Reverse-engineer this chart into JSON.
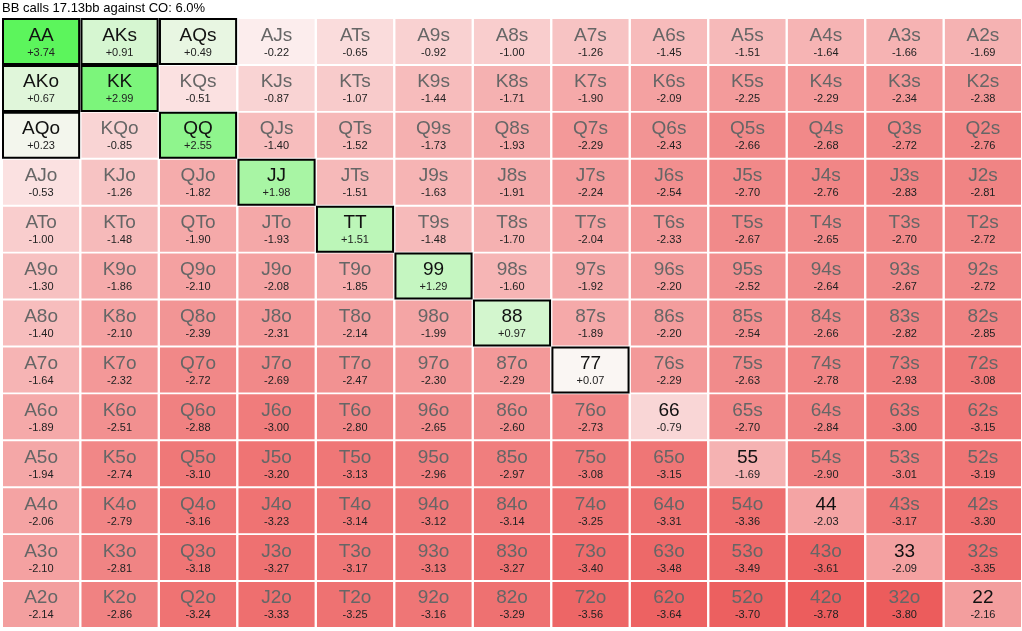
{
  "chart_data": {
    "type": "heatmap",
    "title": "BB calls 17.13bb against CO: 6.0%",
    "categories": [
      null,
      null,
      null,
      null,
      null,
      null,
      null,
      null,
      null,
      null,
      null,
      null,
      null
    ],
    "y_categories": [
      null,
      null,
      null,
      null,
      null,
      null,
      null,
      null,
      null,
      null,
      null,
      null,
      null
    ],
    "cells": [
      [
        3.74,
        0.91,
        0.49,
        -0.22,
        -0.65,
        -0.92,
        -1.0,
        -1.26,
        -1.45,
        -1.51,
        -1.64,
        -1.66,
        -1.69
      ],
      [
        0.67,
        2.99,
        -0.51,
        -0.87,
        -1.07,
        -1.44,
        -1.71,
        -1.9,
        -2.09,
        -2.25,
        -2.29,
        -2.34,
        -2.38
      ],
      [
        0.23,
        -0.85,
        2.55,
        -1.4,
        -1.52,
        -1.73,
        -1.93,
        -2.29,
        -2.43,
        -2.66,
        -2.68,
        -2.72,
        -2.76
      ],
      [
        -0.53,
        -1.26,
        -1.82,
        1.98,
        -1.51,
        -1.63,
        -1.91,
        -2.24,
        -2.54,
        -2.7,
        -2.76,
        -2.83,
        -2.81
      ],
      [
        -1.0,
        -1.48,
        -1.9,
        -1.93,
        1.51,
        -1.48,
        -1.7,
        -2.04,
        -2.33,
        -2.67,
        -2.65,
        -2.7,
        -2.72
      ],
      [
        -1.3,
        -1.86,
        -2.1,
        -2.08,
        -1.85,
        1.29,
        -1.6,
        -1.92,
        -2.2,
        -2.52,
        -2.64,
        -2.67,
        -2.72
      ],
      [
        -1.4,
        -2.1,
        -2.39,
        -2.31,
        -2.14,
        -1.99,
        0.97,
        -1.89,
        -2.2,
        -2.54,
        -2.66,
        -2.82,
        -2.85
      ],
      [
        -1.64,
        -2.32,
        -2.72,
        -2.69,
        -2.47,
        -2.3,
        -2.29,
        0.07,
        -2.29,
        -2.63,
        -2.78,
        -2.93,
        -3.08
      ],
      [
        -1.89,
        -2.51,
        -2.88,
        -3.0,
        -2.8,
        -2.65,
        -2.6,
        -2.73,
        -0.79,
        -2.7,
        -2.84,
        -3.0,
        -3.15
      ],
      [
        -1.94,
        -2.74,
        -3.1,
        -3.2,
        -3.13,
        -2.96,
        -2.97,
        -3.08,
        -3.15,
        -1.69,
        -2.9,
        -3.01,
        -3.19
      ],
      [
        -2.06,
        -2.79,
        -3.16,
        -3.23,
        -3.14,
        -3.12,
        -3.14,
        -3.25,
        -3.31,
        -3.36,
        -2.03,
        -3.17,
        -3.3
      ],
      [
        -2.1,
        -2.81,
        -3.18,
        -3.27,
        -3.17,
        -3.13,
        -3.27,
        -3.4,
        -3.48,
        -3.49,
        -3.61,
        -2.09,
        -3.35
      ],
      [
        -2.14,
        -2.86,
        -3.24,
        -3.33,
        -3.25,
        -3.16,
        -3.29,
        -3.56,
        -3.64,
        -3.7,
        -3.78,
        -3.8,
        -2.16
      ]
    ],
    "cell_labels": [
      [
        "+3.74",
        "+0.91",
        "+0.49",
        "-0.22",
        "-0.65",
        "-0.92",
        "-1.00",
        "-1.26",
        "-1.45",
        "-1.51",
        "-1.64",
        "-1.66",
        "-1.69"
      ],
      [
        "+0.67",
        "+2.99",
        "-0.51",
        "-0.87",
        "-1.07",
        "-1.44",
        "-1.71",
        "-1.90",
        "-2.09",
        "-2.25",
        "-2.29",
        "-2.34",
        "-2.38"
      ],
      [
        "+0.23",
        "-0.85",
        "+2.55",
        "-1.40",
        "-1.52",
        "-1.73",
        "-1.93",
        "-2.29",
        "-2.43",
        "-2.66",
        "-2.68",
        "-2.72",
        "-2.76"
      ],
      [
        "-0.53",
        "-1.26",
        "-1.82",
        "+1.98",
        "-1.51",
        "-1.63",
        "-1.91",
        "-2.24",
        "-2.54",
        "-2.70",
        "-2.76",
        "-2.83",
        "-2.81"
      ],
      [
        "-1.00",
        "-1.48",
        "-1.90",
        "-1.93",
        "+1.51",
        "-1.48",
        "-1.70",
        "-2.04",
        "-2.33",
        "-2.67",
        "-2.65",
        "-2.70",
        "-2.72"
      ],
      [
        "-1.30",
        "-1.86",
        "-2.10",
        "-2.08",
        "-1.85",
        "+1.29",
        "-1.60",
        "-1.92",
        "-2.20",
        "-2.52",
        "-2.64",
        "-2.67",
        "-2.72"
      ],
      [
        "-1.40",
        "-2.10",
        "-2.39",
        "-2.31",
        "-2.14",
        "-1.99",
        "+0.97",
        "-1.89",
        "-2.20",
        "-2.54",
        "-2.66",
        "-2.82",
        "-2.85"
      ],
      [
        "-1.64",
        "-2.32",
        "-2.72",
        "-2.69",
        "-2.47",
        "-2.30",
        "-2.29",
        "+0.07",
        "-2.29",
        "-2.63",
        "-2.78",
        "-2.93",
        "-3.08"
      ],
      [
        "-1.89",
        "-2.51",
        "-2.88",
        "-3.00",
        "-2.80",
        "-2.65",
        "-2.60",
        "-2.73",
        "-0.79",
        "-2.70",
        "-2.84",
        "-3.00",
        "-3.15"
      ],
      [
        "-1.94",
        "-2.74",
        "-3.10",
        "-3.20",
        "-3.13",
        "-2.96",
        "-2.97",
        "-3.08",
        "-3.15",
        "-1.69",
        "-2.90",
        "-3.01",
        "-3.19"
      ],
      [
        "-2.06",
        "-2.79",
        "-3.16",
        "-3.23",
        "-3.14",
        "-3.12",
        "-3.14",
        "-3.25",
        "-3.31",
        "-3.36",
        "-2.03",
        "-3.17",
        "-3.30"
      ],
      [
        "-2.10",
        "-2.81",
        "-3.18",
        "-3.27",
        "-3.17",
        "-3.13",
        "-3.27",
        "-3.40",
        "-3.48",
        "-3.49",
        "-3.61",
        "-2.09",
        "-3.35"
      ],
      [
        "-2.14",
        "-2.86",
        "-3.24",
        "-3.33",
        "-3.25",
        "-3.16",
        "-3.29",
        "-3.56",
        "-3.64",
        "-3.70",
        "-3.78",
        "-3.80",
        "-2.16"
      ]
    ],
    "annotations": [
      "AA",
      "AKs",
      "AQs",
      "AJs",
      "ATs",
      "A9s",
      "A8s",
      "A7s",
      "A6s",
      "A5s",
      "A4s",
      "A3s",
      "A2s",
      "AKo",
      "KK",
      "KQs",
      "KJs",
      "KTs",
      "K9s",
      "K8s",
      "K7s",
      "K6s",
      "K5s",
      "K4s",
      "K3s",
      "K2s",
      "AQo",
      "KQo",
      "QQ",
      "QJs",
      "QTs",
      "Q9s",
      "Q8s",
      "Q7s",
      "Q6s",
      "Q5s",
      "Q4s",
      "Q3s",
      "Q2s",
      "AJo",
      "KJo",
      "QJo",
      "JJ",
      "JTs",
      "J9s",
      "J8s",
      "J7s",
      "J6s",
      "J5s",
      "J4s",
      "J3s",
      "J2s",
      "ATo",
      "KTo",
      "QTo",
      "JTo",
      "TT",
      "T9s",
      "T8s",
      "T7s",
      "T6s",
      "T5s",
      "T4s",
      "T3s",
      "T2s",
      "A9o",
      "K9o",
      "Q9o",
      "J9o",
      "T9o",
      "99",
      "98s",
      "97s",
      "96s",
      "95s",
      "94s",
      "93s",
      "92s",
      "A8o",
      "K8o",
      "Q8o",
      "J8o",
      "T8o",
      "98o",
      "88",
      "87s",
      "86s",
      "85s",
      "84s",
      "83s",
      "82s",
      "A7o",
      "K7o",
      "Q7o",
      "J7o",
      "T7o",
      "97o",
      "87o",
      "77",
      "76s",
      "75s",
      "74s",
      "73s",
      "72s",
      "A6o",
      "K6o",
      "Q6o",
      "J6o",
      "T6o",
      "96o",
      "86o",
      "76o",
      "66",
      "65s",
      "64s",
      "63s",
      "62s",
      "A5o",
      "K5o",
      "Q5o",
      "J5o",
      "T5o",
      "95o",
      "85o",
      "75o",
      "65o",
      "55",
      "54s",
      "53s",
      "52s",
      "A4o",
      "K4o",
      "Q4o",
      "J4o",
      "T4o",
      "94o",
      "84o",
      "74o",
      "64o",
      "54o",
      "44",
      "43s",
      "42s",
      "A3o",
      "K3o",
      "Q3o",
      "J3o",
      "T3o",
      "93o",
      "83o",
      "73o",
      "63o",
      "53o",
      "43o",
      "33",
      "32s",
      "A2o",
      "K2o",
      "Q2o",
      "J2o",
      "T2o",
      "92o",
      "82o",
      "72o",
      "62o",
      "52o",
      "42o",
      "32o",
      "22"
    ]
  }
}
